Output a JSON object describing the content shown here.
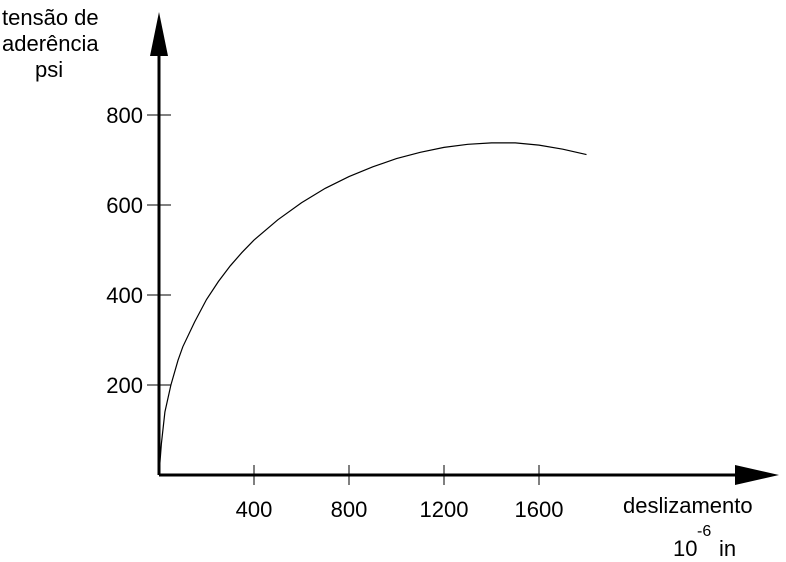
{
  "chart_data": {
    "type": "line",
    "ylabel_lines": [
      "tensão de",
      "aderência",
      "psi"
    ],
    "xlabel": "deslizamento",
    "xunit": {
      "base": "10",
      "exponent": "-6",
      "unit": "in"
    },
    "x_ticks": [
      400,
      800,
      1200,
      1600
    ],
    "y_ticks": [
      200,
      400,
      600,
      800
    ],
    "xlim": [
      0,
      2600
    ],
    "ylim": [
      0,
      900
    ],
    "grid": false,
    "series": [
      {
        "x": [
          0,
          10,
          25,
          50,
          80,
          100,
          150,
          200,
          250,
          300,
          350,
          400,
          500,
          600,
          700,
          800,
          900,
          1000,
          1100,
          1200,
          1300,
          1400,
          1500,
          1600,
          1700,
          1800
        ],
        "y": [
          0,
          70,
          140,
          200,
          255,
          285,
          340,
          390,
          430,
          465,
          495,
          522,
          567,
          605,
          637,
          663,
          685,
          703,
          717,
          728,
          735,
          738,
          738,
          733,
          724,
          712
        ]
      }
    ]
  }
}
